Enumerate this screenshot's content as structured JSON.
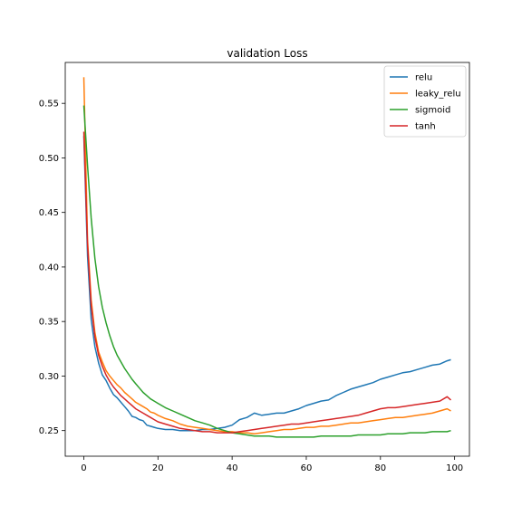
{
  "chart_data": {
    "type": "line",
    "title": "validation Loss",
    "xlabel": "",
    "ylabel": "",
    "xlim": [
      -5,
      104
    ],
    "ylim": [
      0.2265,
      0.5875
    ],
    "xticks": [
      0,
      20,
      40,
      60,
      80,
      100
    ],
    "yticks": [
      0.25,
      0.3,
      0.35,
      0.4,
      0.45,
      0.5,
      0.55
    ],
    "legend_position": "top-right",
    "grid": false,
    "series": [
      {
        "name": "relu",
        "color": "#1f77b4",
        "points": [
          [
            0,
            0.52
          ],
          [
            1,
            0.41
          ],
          [
            2,
            0.352
          ],
          [
            3,
            0.327
          ],
          [
            4,
            0.312
          ],
          [
            5,
            0.301
          ],
          [
            6,
            0.296
          ],
          [
            7,
            0.289
          ],
          [
            8,
            0.283
          ],
          [
            9,
            0.28
          ],
          [
            10,
            0.276
          ],
          [
            11,
            0.272
          ],
          [
            12,
            0.268
          ],
          [
            13,
            0.263
          ],
          [
            14,
            0.262
          ],
          [
            15,
            0.26
          ],
          [
            16,
            0.259
          ],
          [
            17,
            0.255
          ],
          [
            18,
            0.254
          ],
          [
            19,
            0.253
          ],
          [
            20,
            0.252
          ],
          [
            22,
            0.251
          ],
          [
            24,
            0.251
          ],
          [
            26,
            0.25
          ],
          [
            28,
            0.25
          ],
          [
            30,
            0.25
          ],
          [
            32,
            0.251
          ],
          [
            34,
            0.251
          ],
          [
            36,
            0.252
          ],
          [
            38,
            0.253
          ],
          [
            40,
            0.255
          ],
          [
            42,
            0.26
          ],
          [
            44,
            0.262
          ],
          [
            46,
            0.266
          ],
          [
            48,
            0.264
          ],
          [
            50,
            0.265
          ],
          [
            52,
            0.266
          ],
          [
            54,
            0.266
          ],
          [
            56,
            0.268
          ],
          [
            58,
            0.27
          ],
          [
            60,
            0.273
          ],
          [
            62,
            0.275
          ],
          [
            64,
            0.277
          ],
          [
            66,
            0.278
          ],
          [
            68,
            0.282
          ],
          [
            70,
            0.285
          ],
          [
            72,
            0.288
          ],
          [
            74,
            0.29
          ],
          [
            76,
            0.292
          ],
          [
            78,
            0.294
          ],
          [
            80,
            0.297
          ],
          [
            82,
            0.299
          ],
          [
            84,
            0.301
          ],
          [
            86,
            0.303
          ],
          [
            88,
            0.304
          ],
          [
            90,
            0.306
          ],
          [
            92,
            0.308
          ],
          [
            94,
            0.31
          ],
          [
            96,
            0.311
          ],
          [
            98,
            0.314
          ],
          [
            99,
            0.315
          ]
        ]
      },
      {
        "name": "leaky_relu",
        "color": "#ff7f0e",
        "points": [
          [
            0,
            0.574
          ],
          [
            1,
            0.425
          ],
          [
            2,
            0.37
          ],
          [
            3,
            0.34
          ],
          [
            4,
            0.322
          ],
          [
            5,
            0.313
          ],
          [
            6,
            0.305
          ],
          [
            7,
            0.3
          ],
          [
            8,
            0.296
          ],
          [
            9,
            0.292
          ],
          [
            10,
            0.289
          ],
          [
            11,
            0.285
          ],
          [
            12,
            0.282
          ],
          [
            13,
            0.279
          ],
          [
            14,
            0.276
          ],
          [
            15,
            0.274
          ],
          [
            16,
            0.272
          ],
          [
            17,
            0.27
          ],
          [
            18,
            0.267
          ],
          [
            19,
            0.266
          ],
          [
            20,
            0.264
          ],
          [
            22,
            0.261
          ],
          [
            24,
            0.259
          ],
          [
            26,
            0.256
          ],
          [
            28,
            0.254
          ],
          [
            30,
            0.253
          ],
          [
            32,
            0.252
          ],
          [
            34,
            0.251
          ],
          [
            36,
            0.25
          ],
          [
            38,
            0.249
          ],
          [
            40,
            0.249
          ],
          [
            42,
            0.248
          ],
          [
            44,
            0.248
          ],
          [
            46,
            0.247
          ],
          [
            48,
            0.248
          ],
          [
            50,
            0.249
          ],
          [
            52,
            0.25
          ],
          [
            54,
            0.251
          ],
          [
            56,
            0.251
          ],
          [
            58,
            0.252
          ],
          [
            60,
            0.253
          ],
          [
            62,
            0.253
          ],
          [
            64,
            0.254
          ],
          [
            66,
            0.254
          ],
          [
            68,
            0.255
          ],
          [
            70,
            0.256
          ],
          [
            72,
            0.257
          ],
          [
            74,
            0.257
          ],
          [
            76,
            0.258
          ],
          [
            78,
            0.259
          ],
          [
            80,
            0.26
          ],
          [
            82,
            0.261
          ],
          [
            84,
            0.262
          ],
          [
            86,
            0.262
          ],
          [
            88,
            0.263
          ],
          [
            90,
            0.264
          ],
          [
            92,
            0.265
          ],
          [
            94,
            0.266
          ],
          [
            96,
            0.268
          ],
          [
            98,
            0.27
          ],
          [
            99,
            0.268
          ]
        ]
      },
      {
        "name": "sigmoid",
        "color": "#2ca02c",
        "points": [
          [
            0,
            0.548
          ],
          [
            1,
            0.493
          ],
          [
            2,
            0.445
          ],
          [
            3,
            0.408
          ],
          [
            4,
            0.382
          ],
          [
            5,
            0.363
          ],
          [
            6,
            0.349
          ],
          [
            7,
            0.337
          ],
          [
            8,
            0.327
          ],
          [
            9,
            0.319
          ],
          [
            10,
            0.313
          ],
          [
            11,
            0.307
          ],
          [
            12,
            0.302
          ],
          [
            13,
            0.297
          ],
          [
            14,
            0.293
          ],
          [
            15,
            0.289
          ],
          [
            16,
            0.285
          ],
          [
            17,
            0.282
          ],
          [
            18,
            0.279
          ],
          [
            19,
            0.277
          ],
          [
            20,
            0.275
          ],
          [
            22,
            0.271
          ],
          [
            24,
            0.268
          ],
          [
            26,
            0.265
          ],
          [
            28,
            0.262
          ],
          [
            30,
            0.259
          ],
          [
            32,
            0.257
          ],
          [
            34,
            0.255
          ],
          [
            36,
            0.252
          ],
          [
            38,
            0.25
          ],
          [
            40,
            0.248
          ],
          [
            42,
            0.247
          ],
          [
            44,
            0.246
          ],
          [
            46,
            0.245
          ],
          [
            48,
            0.245
          ],
          [
            50,
            0.245
          ],
          [
            52,
            0.244
          ],
          [
            54,
            0.244
          ],
          [
            56,
            0.244
          ],
          [
            58,
            0.244
          ],
          [
            60,
            0.244
          ],
          [
            62,
            0.244
          ],
          [
            64,
            0.245
          ],
          [
            66,
            0.245
          ],
          [
            68,
            0.245
          ],
          [
            70,
            0.245
          ],
          [
            72,
            0.245
          ],
          [
            74,
            0.246
          ],
          [
            76,
            0.246
          ],
          [
            78,
            0.246
          ],
          [
            80,
            0.246
          ],
          [
            82,
            0.247
          ],
          [
            84,
            0.247
          ],
          [
            86,
            0.247
          ],
          [
            88,
            0.248
          ],
          [
            90,
            0.248
          ],
          [
            92,
            0.248
          ],
          [
            94,
            0.249
          ],
          [
            96,
            0.249
          ],
          [
            98,
            0.249
          ],
          [
            99,
            0.25
          ]
        ]
      },
      {
        "name": "tanh",
        "color": "#d62728",
        "points": [
          [
            0,
            0.524
          ],
          [
            1,
            0.42
          ],
          [
            2,
            0.365
          ],
          [
            3,
            0.336
          ],
          [
            4,
            0.319
          ],
          [
            5,
            0.309
          ],
          [
            6,
            0.301
          ],
          [
            7,
            0.295
          ],
          [
            8,
            0.29
          ],
          [
            9,
            0.286
          ],
          [
            10,
            0.282
          ],
          [
            11,
            0.279
          ],
          [
            12,
            0.276
          ],
          [
            13,
            0.273
          ],
          [
            14,
            0.27
          ],
          [
            15,
            0.268
          ],
          [
            16,
            0.266
          ],
          [
            17,
            0.264
          ],
          [
            18,
            0.262
          ],
          [
            19,
            0.26
          ],
          [
            20,
            0.258
          ],
          [
            22,
            0.256
          ],
          [
            24,
            0.254
          ],
          [
            26,
            0.252
          ],
          [
            28,
            0.251
          ],
          [
            30,
            0.25
          ],
          [
            32,
            0.249
          ],
          [
            34,
            0.249
          ],
          [
            36,
            0.248
          ],
          [
            38,
            0.248
          ],
          [
            40,
            0.248
          ],
          [
            42,
            0.249
          ],
          [
            44,
            0.25
          ],
          [
            46,
            0.251
          ],
          [
            48,
            0.252
          ],
          [
            50,
            0.253
          ],
          [
            52,
            0.254
          ],
          [
            54,
            0.255
          ],
          [
            56,
            0.256
          ],
          [
            58,
            0.256
          ],
          [
            60,
            0.257
          ],
          [
            62,
            0.258
          ],
          [
            64,
            0.259
          ],
          [
            66,
            0.26
          ],
          [
            68,
            0.261
          ],
          [
            70,
            0.262
          ],
          [
            72,
            0.263
          ],
          [
            74,
            0.264
          ],
          [
            76,
            0.266
          ],
          [
            78,
            0.268
          ],
          [
            80,
            0.27
          ],
          [
            82,
            0.271
          ],
          [
            84,
            0.271
          ],
          [
            86,
            0.272
          ],
          [
            88,
            0.273
          ],
          [
            90,
            0.274
          ],
          [
            92,
            0.275
          ],
          [
            94,
            0.276
          ],
          [
            96,
            0.277
          ],
          [
            98,
            0.281
          ],
          [
            99,
            0.278
          ]
        ]
      }
    ]
  }
}
